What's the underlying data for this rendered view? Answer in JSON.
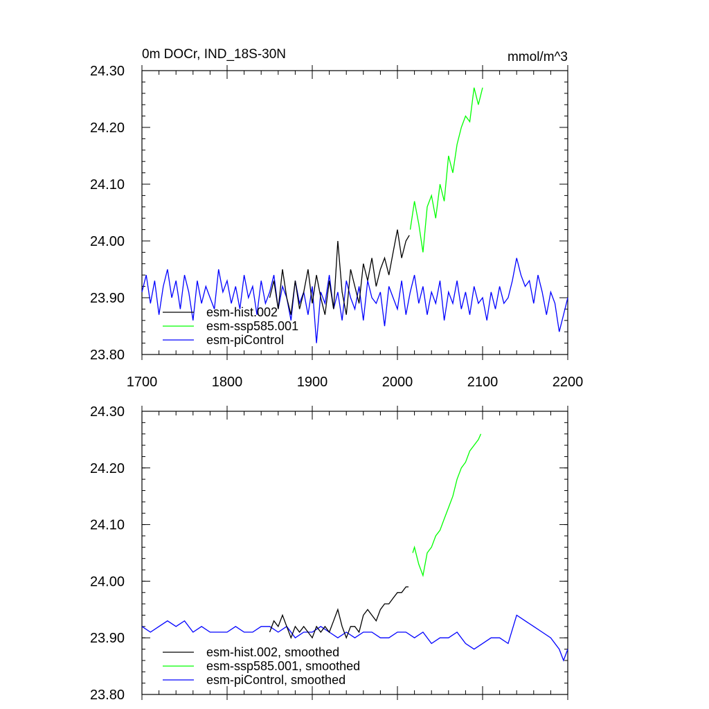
{
  "figure": {
    "title": "0m DOCr, IND_18S-30N",
    "units": "mmol/m^3"
  },
  "chart_data": [
    {
      "type": "line",
      "title": "0m DOCr, IND_18S-30N",
      "units": "mmol/m^3",
      "xlim": [
        1700,
        2200
      ],
      "ylim": [
        23.8,
        24.3
      ],
      "xticks": [
        "1700",
        "1800",
        "1900",
        "2000",
        "2100",
        "2200"
      ],
      "yticks": [
        "23.80",
        "23.90",
        "24.00",
        "24.10",
        "24.20",
        "24.30"
      ],
      "legend_position": "bottom-left",
      "series": [
        {
          "name": "esm-hist.002",
          "color": "#000000",
          "x": [
            1850,
            1855,
            1860,
            1865,
            1870,
            1875,
            1880,
            1885,
            1890,
            1895,
            1900,
            1905,
            1910,
            1915,
            1920,
            1925,
            1930,
            1935,
            1940,
            1945,
            1950,
            1955,
            1960,
            1965,
            1970,
            1975,
            1980,
            1985,
            1990,
            1995,
            2000,
            2005,
            2010,
            2014
          ],
          "y": [
            23.9,
            23.93,
            23.88,
            23.95,
            23.9,
            23.87,
            23.93,
            23.88,
            23.91,
            23.95,
            23.89,
            23.94,
            23.9,
            23.87,
            23.93,
            23.88,
            24.0,
            23.91,
            23.87,
            23.95,
            23.92,
            23.89,
            23.96,
            23.93,
            23.97,
            23.92,
            23.95,
            23.97,
            23.94,
            23.98,
            24.02,
            23.97,
            24.0,
            24.01
          ]
        },
        {
          "name": "esm-ssp585.001",
          "color": "#00ff00",
          "x": [
            2015,
            2020,
            2025,
            2030,
            2035,
            2040,
            2045,
            2050,
            2055,
            2060,
            2065,
            2070,
            2075,
            2080,
            2085,
            2090,
            2095,
            2100
          ],
          "y": [
            24.02,
            24.07,
            24.03,
            23.98,
            24.06,
            24.08,
            24.04,
            24.1,
            24.07,
            24.15,
            24.12,
            24.17,
            24.2,
            24.22,
            24.21,
            24.27,
            24.24,
            24.27
          ]
        },
        {
          "name": "esm-piControl",
          "color": "#0000ff",
          "x": [
            1700,
            1705,
            1710,
            1715,
            1720,
            1725,
            1730,
            1735,
            1740,
            1745,
            1750,
            1755,
            1760,
            1765,
            1770,
            1775,
            1780,
            1785,
            1790,
            1795,
            1800,
            1805,
            1810,
            1815,
            1820,
            1825,
            1830,
            1835,
            1840,
            1845,
            1850,
            1855,
            1860,
            1865,
            1870,
            1875,
            1880,
            1885,
            1890,
            1895,
            1900,
            1905,
            1910,
            1915,
            1920,
            1925,
            1930,
            1935,
            1940,
            1945,
            1950,
            1955,
            1960,
            1965,
            1970,
            1975,
            1980,
            1985,
            1990,
            1995,
            2000,
            2005,
            2010,
            2015,
            2020,
            2025,
            2030,
            2035,
            2040,
            2045,
            2050,
            2055,
            2060,
            2065,
            2070,
            2075,
            2080,
            2085,
            2090,
            2095,
            2100,
            2105,
            2110,
            2115,
            2120,
            2125,
            2130,
            2135,
            2140,
            2145,
            2150,
            2155,
            2160,
            2165,
            2170,
            2175,
            2180,
            2185,
            2190,
            2195,
            2200
          ],
          "y": [
            23.91,
            23.94,
            23.89,
            23.93,
            23.87,
            23.92,
            23.95,
            23.9,
            23.93,
            23.88,
            23.94,
            23.91,
            23.86,
            23.93,
            23.89,
            23.92,
            23.9,
            23.88,
            23.95,
            23.91,
            23.93,
            23.89,
            23.92,
            23.88,
            23.94,
            23.9,
            23.92,
            23.87,
            23.93,
            23.89,
            23.91,
            23.94,
            23.88,
            23.92,
            23.9,
            23.86,
            23.93,
            23.89,
            23.91,
            23.87,
            23.92,
            23.82,
            23.91,
            23.89,
            23.94,
            23.88,
            23.91,
            23.86,
            23.93,
            23.9,
            23.88,
            23.92,
            23.86,
            23.93,
            23.9,
            23.89,
            23.91,
            23.85,
            23.92,
            23.9,
            23.88,
            23.93,
            23.87,
            23.91,
            23.94,
            23.89,
            23.92,
            23.87,
            23.91,
            23.89,
            23.93,
            23.86,
            23.91,
            23.89,
            23.93,
            23.88,
            23.91,
            23.87,
            23.92,
            23.89,
            23.9,
            23.86,
            23.91,
            23.88,
            23.92,
            23.89,
            23.9,
            23.93,
            23.97,
            23.94,
            23.92,
            23.93,
            23.89,
            23.94,
            23.91,
            23.87,
            23.91,
            23.89,
            23.84,
            23.87,
            23.9
          ]
        }
      ]
    },
    {
      "type": "line",
      "xlim": [
        1700,
        2200
      ],
      "ylim": [
        23.8,
        24.3
      ],
      "yticks": [
        "23.80",
        "23.90",
        "24.00",
        "24.10",
        "24.20",
        "24.30"
      ],
      "legend_position": "bottom-left",
      "series": [
        {
          "name": "esm-hist.002, smoothed",
          "color": "#000000",
          "x": [
            1850,
            1855,
            1860,
            1865,
            1870,
            1875,
            1880,
            1885,
            1890,
            1895,
            1900,
            1905,
            1910,
            1915,
            1920,
            1925,
            1930,
            1935,
            1940,
            1945,
            1950,
            1955,
            1960,
            1965,
            1970,
            1975,
            1980,
            1985,
            1990,
            1995,
            2000,
            2005,
            2010,
            2013
          ],
          "y": [
            23.91,
            23.93,
            23.92,
            23.94,
            23.92,
            23.9,
            23.92,
            23.91,
            23.92,
            23.91,
            23.9,
            23.92,
            23.91,
            23.92,
            23.91,
            23.93,
            23.95,
            23.92,
            23.9,
            23.92,
            23.92,
            23.91,
            23.94,
            23.95,
            23.94,
            23.93,
            23.95,
            23.96,
            23.96,
            23.97,
            23.98,
            23.98,
            23.99,
            23.99
          ]
        },
        {
          "name": "esm-ssp585.001, smoothed",
          "color": "#00ff00",
          "x": [
            2018,
            2020,
            2025,
            2030,
            2035,
            2040,
            2045,
            2050,
            2055,
            2060,
            2065,
            2070,
            2075,
            2080,
            2085,
            2090,
            2095,
            2098
          ],
          "y": [
            24.05,
            24.06,
            24.03,
            24.01,
            24.05,
            24.06,
            24.08,
            24.09,
            24.11,
            24.13,
            24.15,
            24.18,
            24.2,
            24.21,
            24.23,
            24.24,
            24.25,
            24.26
          ]
        },
        {
          "name": "esm-piControl, smoothed",
          "color": "#0000ff",
          "x": [
            1700,
            1710,
            1720,
            1730,
            1740,
            1750,
            1760,
            1770,
            1780,
            1790,
            1800,
            1810,
            1820,
            1830,
            1840,
            1850,
            1860,
            1870,
            1880,
            1890,
            1900,
            1910,
            1920,
            1930,
            1940,
            1950,
            1960,
            1970,
            1980,
            1990,
            2000,
            2010,
            2020,
            2030,
            2040,
            2050,
            2060,
            2070,
            2080,
            2090,
            2100,
            2110,
            2120,
            2130,
            2140,
            2150,
            2160,
            2170,
            2180,
            2190,
            2195,
            2200
          ],
          "y": [
            23.92,
            23.91,
            23.92,
            23.93,
            23.92,
            23.93,
            23.91,
            23.92,
            23.91,
            23.91,
            23.91,
            23.92,
            23.91,
            23.91,
            23.92,
            23.92,
            23.91,
            23.92,
            23.9,
            23.91,
            23.91,
            23.92,
            23.91,
            23.9,
            23.91,
            23.9,
            23.91,
            23.91,
            23.9,
            23.9,
            23.91,
            23.91,
            23.9,
            23.91,
            23.89,
            23.9,
            23.9,
            23.91,
            23.89,
            23.88,
            23.89,
            23.9,
            23.9,
            23.89,
            23.94,
            23.93,
            23.92,
            23.91,
            23.9,
            23.88,
            23.86,
            23.88
          ]
        }
      ]
    }
  ]
}
